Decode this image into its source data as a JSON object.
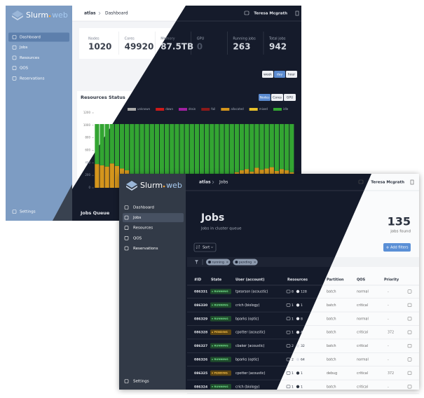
{
  "dashboard": {
    "logo": {
      "name": "Slurm",
      "suffix": "web"
    },
    "nav": [
      "Dashboard",
      "Jobs",
      "Resources",
      "QOS",
      "Reservations"
    ],
    "active_nav": 0,
    "settings": "Settings",
    "breadcrumb": {
      "cluster": "atlas",
      "page": "Dashboard"
    },
    "user": "Teresa Mcgrath",
    "stats": [
      {
        "label": "Nodes",
        "value": 1020
      },
      {
        "label": "Cores",
        "value": 49920
      },
      {
        "label": "Memory",
        "value": "87.5TB"
      },
      {
        "label": "GPU",
        "value": 0
      },
      {
        "label": "Running jobs",
        "value": 263
      },
      {
        "label": "Total jobs",
        "value": 942
      }
    ],
    "ranges": [
      "week",
      "day",
      "hour"
    ],
    "active_range": 1,
    "resources_chart": {
      "type": "bar",
      "title": "Resources Status",
      "toggles": [
        "Nodes",
        "Cores",
        "GPU"
      ],
      "active_toggle": 0,
      "stacked": true,
      "categories": [
        null,
        null,
        null,
        null,
        null,
        null,
        null,
        null,
        null,
        null,
        null,
        null,
        null,
        null,
        null,
        null,
        null,
        null,
        null,
        null,
        null,
        null,
        null,
        null,
        null,
        null,
        null,
        null,
        null,
        null,
        null,
        null,
        null,
        null,
        null,
        null,
        null,
        null,
        null,
        null
      ],
      "series": [
        {
          "name": "unknown",
          "color": "#aaaaaa",
          "values": [
            0,
            0,
            0,
            0,
            0,
            0,
            0,
            0,
            0,
            0,
            0,
            0,
            0,
            0,
            0,
            0,
            0,
            0,
            0,
            0,
            0,
            0,
            0,
            0,
            0,
            0,
            0,
            0,
            0,
            0,
            0,
            0,
            0,
            0,
            0,
            0,
            0,
            0,
            0,
            0
          ]
        },
        {
          "name": "down",
          "color": "#cc1a1a",
          "values": [
            0,
            0,
            0,
            0,
            0,
            0,
            0,
            0,
            0,
            0,
            0,
            0,
            0,
            0,
            0,
            0,
            0,
            0,
            0,
            0,
            0,
            0,
            0,
            0,
            0,
            0,
            0,
            0,
            0,
            0,
            0,
            0,
            0,
            0,
            0,
            0,
            0,
            0,
            0,
            0
          ]
        },
        {
          "name": "drain",
          "color": "#a020a0",
          "values": [
            0,
            0,
            0,
            0,
            0,
            0,
            0,
            0,
            0,
            0,
            0,
            0,
            0,
            0,
            0,
            0,
            0,
            0,
            0,
            0,
            0,
            0,
            0,
            0,
            0,
            0,
            0,
            0,
            0,
            0,
            0,
            0,
            0,
            0,
            0,
            0,
            0,
            0,
            0,
            0
          ]
        },
        {
          "name": "fail",
          "color": "#8b1a1a",
          "values": [
            0,
            0,
            0,
            0,
            0,
            0,
            0,
            0,
            0,
            0,
            0,
            0,
            0,
            0,
            0,
            0,
            0,
            0,
            0,
            0,
            0,
            0,
            0,
            0,
            0,
            0,
            0,
            0,
            0,
            0,
            0,
            0,
            0,
            0,
            0,
            0,
            0,
            0,
            0,
            0
          ]
        },
        {
          "name": "allocated",
          "color": "#d4951c",
          "values": [
            380,
            360,
            340,
            390,
            350,
            310,
            280,
            200,
            120,
            60,
            30,
            20,
            10,
            5,
            0,
            0,
            0,
            0,
            0,
            0,
            0,
            0,
            0,
            0,
            0,
            0,
            10,
            190,
            250,
            280,
            300,
            260,
            320,
            290,
            310,
            330,
            270,
            300,
            280,
            250
          ]
        },
        {
          "name": "mixed",
          "color": "#e6c02a",
          "values": [
            0,
            0,
            0,
            0,
            0,
            0,
            0,
            0,
            0,
            0,
            0,
            0,
            0,
            0,
            0,
            0,
            0,
            0,
            0,
            0,
            0,
            0,
            0,
            0,
            0,
            0,
            0,
            0,
            0,
            0,
            0,
            0,
            0,
            0,
            0,
            0,
            0,
            0,
            0,
            0
          ]
        },
        {
          "name": "idle",
          "color": "#33a532",
          "values": [
            640,
            660,
            680,
            630,
            670,
            710,
            740,
            820,
            900,
            960,
            990,
            1000,
            1010,
            1015,
            1020,
            1020,
            1020,
            1020,
            1020,
            1020,
            1020,
            1020,
            1020,
            1020,
            1020,
            1020,
            1010,
            830,
            770,
            740,
            720,
            760,
            700,
            730,
            710,
            690,
            750,
            720,
            740,
            770
          ]
        }
      ],
      "ylim": [
        0,
        1200
      ],
      "yticks": [
        0,
        200,
        400,
        600,
        800,
        1000,
        1200
      ]
    },
    "jobs_queue_title": "Jobs Queue"
  },
  "jobs_page": {
    "logo": {
      "name": "Slurm",
      "suffix": "web"
    },
    "nav": [
      "Dashboard",
      "Jobs",
      "Resources",
      "QOS",
      "Reservations"
    ],
    "active_nav": 1,
    "settings": "Settings",
    "breadcrumb": {
      "cluster": "atlas",
      "page": "Jobs"
    },
    "user": "Teresa Mcgrath",
    "title": "Jobs",
    "subtitle": "Jobs in cluster queue",
    "count": 135,
    "count_label": "jobs found",
    "sort": "Sort",
    "add_filters": "Add filters",
    "filters": [
      "running",
      "pending"
    ],
    "table": {
      "columns": [
        "#ID",
        "State",
        "User (account)",
        "Resources",
        "Partition",
        "QOS",
        "Priority"
      ],
      "rows": [
        [
          "086331",
          "RUNNING",
          "tpearson (acoustic)",
          8,
          128,
          "batch",
          "normal",
          "-"
        ],
        [
          "086330",
          "RUNNING",
          "crich (biology)",
          1,
          1,
          "batch",
          "critical",
          "-"
        ],
        [
          "086329",
          "RUNNING",
          "bparks (optic)",
          1,
          8,
          "batch",
          "normal",
          "-"
        ],
        [
          "086328",
          "PENDING",
          "cpotter (acoustic)",
          1,
          4,
          "batch",
          "critical",
          372
        ],
        [
          "086327",
          "RUNNING",
          "cbaker (acoustic)",
          2,
          32,
          "batch",
          "critical",
          "-"
        ],
        [
          "086326",
          "RUNNING",
          "bparks (optic)",
          2,
          64,
          "batch",
          "normal",
          "-"
        ],
        [
          "086325",
          "PENDING",
          "cpotter (acoustic)",
          1,
          1,
          "debug",
          "critical",
          372
        ],
        [
          "086324",
          "RUNNING",
          "crich (biology)",
          1,
          1,
          "batch",
          "critical",
          "-"
        ]
      ]
    }
  }
}
